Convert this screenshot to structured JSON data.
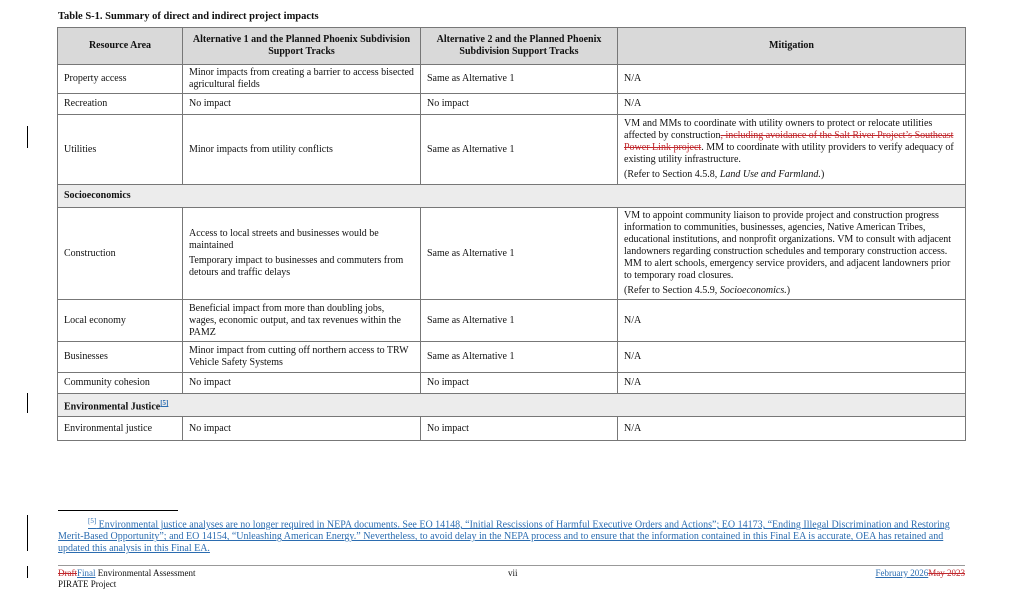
{
  "title": "Table S-1. Summary of direct and indirect project impacts",
  "headers": [
    "Resource Area",
    "Alternative 1 and the Planned Phoenix Subdivision Support Tracks",
    "Alternative 2 and the Planned Phoenix Subdivision Support Tracks",
    "Mitigation"
  ],
  "rows": {
    "property": [
      "Property access",
      "Minor impacts from creating a barrier to access bisected agricultural fields",
      "Same as Alternative 1",
      "N/A"
    ],
    "recreation": [
      "Recreation",
      "No impact",
      "No impact",
      "N/A"
    ],
    "utilities": {
      "area": "Utilities",
      "alt1": "Minor impacts from utility conflicts",
      "alt2": "Same as Alternative 1",
      "mit_a": "VM and MMs to coordinate with utility owners to protect or relocate utilities affected by construction",
      "mit_deleted": ", including avoidance of the Salt River Project’s Southeast Power Link project",
      "mit_b": ". MM to coordinate with utility providers to verify adequacy of existing utility infrastructure.",
      "ref_a": "(Refer to Section 4.5.8, ",
      "ref_i": "Land Use and Farmland.",
      "ref_b": ")"
    },
    "socio_section": "Socioeconomics",
    "construction": {
      "area": "Construction",
      "alt1_a": "Access to local streets and businesses would be maintained",
      "alt1_b": "Temporary impact to businesses and commuters from detours and traffic delays",
      "alt2": "Same as Alternative 1",
      "mit": "VM to appoint community liaison to provide project and construction progress information to communities, businesses, agencies, Native American Tribes, educational institutions, and nonprofit organizations. VM to consult with adjacent landowners regarding construction schedules and temporary construction access. MM to alert schools, emergency service providers, and adjacent landowners prior to temporary road closures.",
      "ref_a": "(Refer to Section 4.5.9, ",
      "ref_i": "Socioeconomics.",
      "ref_b": ")"
    },
    "local": [
      "Local economy",
      "Beneficial impact from more than doubling jobs, wages, economic output, and tax revenues within the PAMZ",
      "Same as Alternative 1",
      "N/A"
    ],
    "businesses": [
      "Businesses",
      "Minor impact from cutting off northern access to TRW Vehicle Safety Systems",
      "Same as Alternative 1",
      "N/A"
    ],
    "community": [
      "Community cohesion",
      "No impact",
      "No impact",
      "N/A"
    ],
    "ej_section": "Environmental Justice",
    "ej_ref": "[5]",
    "ej": [
      "Environmental justice",
      "No impact",
      "No impact",
      "N/A"
    ]
  },
  "footnote": {
    "ref": "[5]",
    "text": " Environmental justice analyses are no longer required in NEPA documents. See EO 14148, “Initial Rescissions of Harmful Executive Orders and Actions”; EO 14173, “Ending Illegal Discrimination and Restoring Merit-Based Opportunity”; and EO 14154, “Unleashing American Energy.” Nevertheless, to avoid delay in the NEPA process and to ensure that the information contained in this Final EA is accurate, OEA has retained and updated this analysis in this Final EA."
  },
  "footer": {
    "deleted": "Draft",
    "inserted": "Final",
    "doc": " Environmental Assessment",
    "project": "PIRATE Project",
    "page": "vii",
    "date_new": "February 2026",
    "date_old": "May 2023"
  }
}
